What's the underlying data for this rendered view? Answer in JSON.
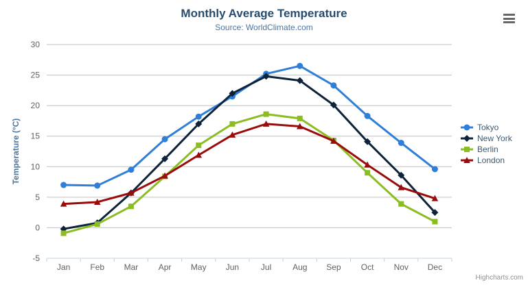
{
  "chart_data": {
    "type": "line",
    "title": "Monthly Average Temperature",
    "subtitle": "Source: WorldClimate.com",
    "xlabel": "",
    "ylabel": "Temperature (°C)",
    "categories": [
      "Jan",
      "Feb",
      "Mar",
      "Apr",
      "May",
      "Jun",
      "Jul",
      "Aug",
      "Sep",
      "Oct",
      "Nov",
      "Dec"
    ],
    "ylim": [
      -5,
      30
    ],
    "ytick_interval": 5,
    "grid": true,
    "legend_position": "right",
    "series": [
      {
        "name": "Tokyo",
        "color": "#2f7ed8",
        "marker": "circle",
        "values": [
          7.0,
          6.9,
          9.5,
          14.5,
          18.2,
          21.5,
          25.2,
          26.5,
          23.3,
          18.3,
          13.9,
          9.6
        ]
      },
      {
        "name": "New York",
        "color": "#0d233a",
        "marker": "diamond",
        "values": [
          -0.2,
          0.8,
          5.7,
          11.3,
          17.0,
          22.0,
          24.8,
          24.1,
          20.1,
          14.1,
          8.6,
          2.5
        ]
      },
      {
        "name": "Berlin",
        "color": "#8bbc21",
        "marker": "square",
        "values": [
          -0.9,
          0.6,
          3.5,
          8.4,
          13.5,
          17.0,
          18.6,
          17.9,
          14.3,
          9.0,
          3.9,
          1.0
        ]
      },
      {
        "name": "London",
        "color": "#9a0b0b",
        "marker": "triangle",
        "values": [
          3.9,
          4.2,
          5.7,
          8.5,
          11.9,
          15.2,
          17.0,
          16.6,
          14.2,
          10.3,
          6.6,
          4.8
        ]
      }
    ],
    "colors": {
      "title": "#274b6d",
      "subtitle": "#4d759e",
      "axis_label": "#606060",
      "axis_title": "#4d759e",
      "gridline": "#c0c0c0",
      "axis_line": "#c0d0e0",
      "legend_text": "#3e576f",
      "credit_text": "#909090",
      "menu_icon": "#666666"
    },
    "credit": "Highcharts.com",
    "icons": {
      "export_menu": "hamburger-menu-icon"
    }
  }
}
